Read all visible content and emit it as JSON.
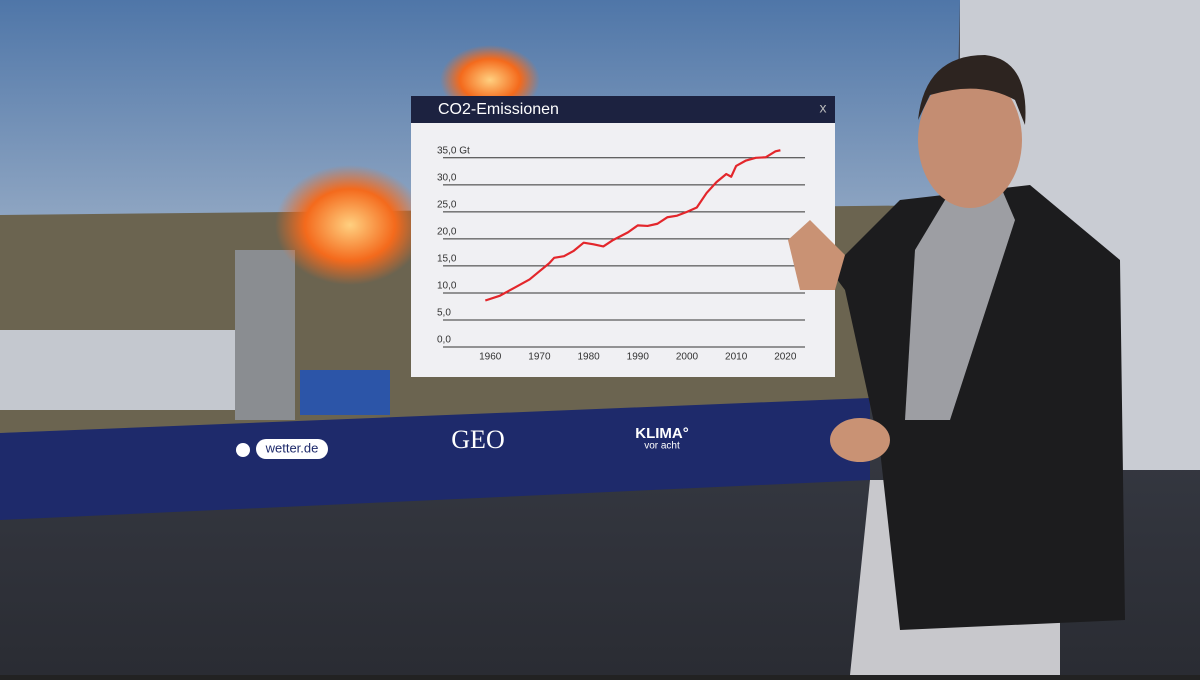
{
  "chart_data": {
    "type": "line",
    "title": "CO2-Emissionen",
    "x": [
      1959,
      1962,
      1965,
      1968,
      1970,
      1972,
      1973,
      1975,
      1977,
      1979,
      1981,
      1983,
      1985,
      1988,
      1990,
      1992,
      1994,
      1996,
      1998,
      2000,
      2002,
      2004,
      2006,
      2008,
      2009,
      2010,
      2012,
      2014,
      2016,
      2018,
      2019
    ],
    "values": [
      8.6,
      9.5,
      11.0,
      12.5,
      14.0,
      15.5,
      16.5,
      16.8,
      17.8,
      19.3,
      19.0,
      18.6,
      19.8,
      21.2,
      22.5,
      22.4,
      22.8,
      24.0,
      24.3,
      25.0,
      25.8,
      28.5,
      30.5,
      32.0,
      31.5,
      33.5,
      34.5,
      35.0,
      35.1,
      36.2,
      36.4
    ],
    "color": "#e3262b",
    "xlim": [
      1950.4,
      2024
    ],
    "xticks": [
      1960,
      1970,
      1980,
      1990,
      2000,
      2010,
      2020
    ],
    "ylim": [
      0,
      37
    ],
    "yticks": [
      {
        "value": 0,
        "label": "0,0"
      },
      {
        "value": 5,
        "label": "5,0"
      },
      {
        "value": 10,
        "label": "10,0"
      },
      {
        "value": 15,
        "label": "15,0"
      },
      {
        "value": 20,
        "label": "20,0"
      },
      {
        "value": 25,
        "label": "25,0"
      },
      {
        "value": 30,
        "label": "30,0"
      },
      {
        "value": 35,
        "label": "35,0 Gt"
      }
    ],
    "grid": true
  },
  "close_button": "x",
  "logos": {
    "wetter": "wetter.de",
    "geo": "GEO",
    "klima": "KLIMA°",
    "klima_sub": "vor acht"
  }
}
